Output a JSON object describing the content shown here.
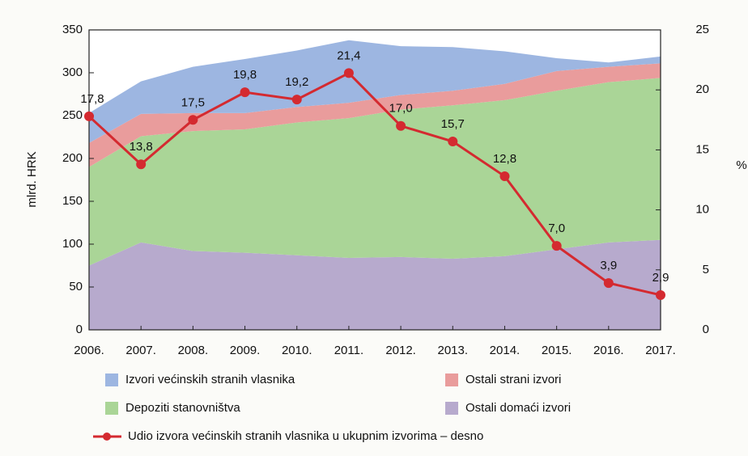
{
  "chart_data": {
    "type": "stacked-area-line",
    "categories": [
      "2006.",
      "2007.",
      "2008.",
      "2009.",
      "2010.",
      "2011.",
      "2012.",
      "2013.",
      "2014.",
      "2015.",
      "2016.",
      "2017."
    ],
    "series": [
      {
        "name": "Ostali domaći izvori",
        "color": "#b7aacd",
        "values": [
          75,
          102,
          92,
          90,
          87,
          84,
          85,
          83,
          86,
          94,
          102,
          105
        ]
      },
      {
        "name": "Depoziti stanovništva",
        "color": "#aad597",
        "values": [
          115,
          124,
          140,
          144,
          155,
          163,
          172,
          179,
          182,
          185,
          187,
          189
        ]
      },
      {
        "name": "Ostali strani izvori",
        "color": "#e99c9c",
        "values": [
          28,
          26,
          21,
          19,
          18,
          18,
          17,
          17,
          19,
          23,
          18,
          17
        ]
      },
      {
        "name": "Izvori većinskih stranih vlasnika",
        "color": "#9db6e1",
        "values": [
          35,
          38,
          54,
          63,
          66,
          73,
          57,
          51,
          38,
          15,
          5,
          8
        ]
      },
      {
        "name": "Udio izvora većinskih stranih vlasnika u ukupnim izvorima – desno",
        "color": "#d42a30",
        "axis": "y2",
        "values": [
          17.8,
          13.8,
          17.5,
          19.8,
          19.2,
          21.4,
          17.0,
          15.7,
          12.8,
          7.0,
          3.9,
          2.9
        ],
        "value_labels": [
          "17,8",
          "13,8",
          "17,5",
          "19,8",
          "19,2",
          "21,4",
          "17,0",
          "15,7",
          "12,8",
          "7,0",
          "3,9",
          "2,9"
        ]
      }
    ],
    "ylabel": "mlrd. HRK",
    "y2label": "%",
    "ylim": [
      0,
      350
    ],
    "yticks": [
      0,
      50,
      100,
      150,
      200,
      250,
      300,
      350
    ],
    "y2lim": [
      0,
      25
    ],
    "y2ticks": [
      0,
      5,
      10,
      15,
      20,
      25
    ]
  }
}
